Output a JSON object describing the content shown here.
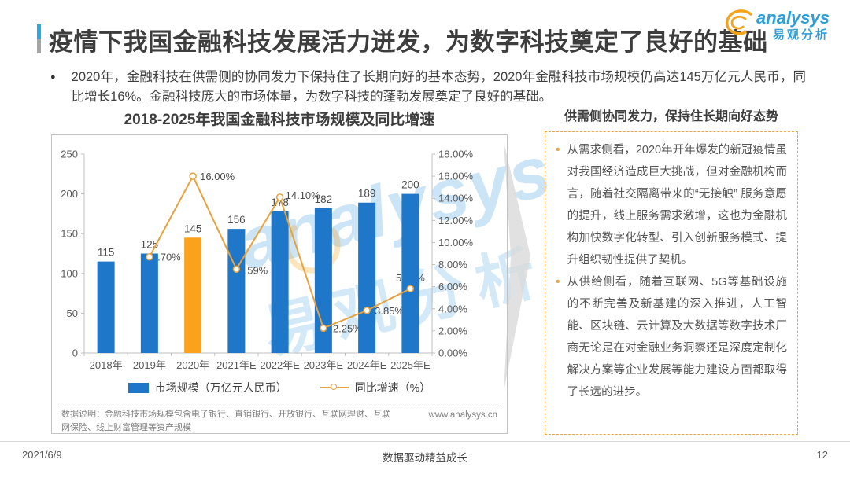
{
  "header": {
    "title": "疫情下我国金融科技发展活力迸发，为数字科技奠定了良好的基础",
    "logo_en": "analysys",
    "logo_cn": "易观分析"
  },
  "intro": {
    "marker": "●",
    "text": "2020年，金融科技在供需侧的协同发力下保持住了长期向好的基本态势，2020年金融科技市场规模仍高达145万亿元人民币，同比增长16%。金融科技庞大的市场体量，为数字科技的蓬勃发展奠定了良好的基础。"
  },
  "chart_data": {
    "type": "bar+line",
    "title": "2018-2025年我国金融科技市场规模及同比增速",
    "categories": [
      "2018年",
      "2019年",
      "2020年",
      "2021年E",
      "2022年E",
      "2023年E",
      "2024年E",
      "2025年E"
    ],
    "series": [
      {
        "name": "市场规模（万亿元人民币）",
        "type": "bar",
        "axis": "left",
        "values": [
          115,
          125,
          145,
          156,
          178,
          182,
          189,
          200
        ],
        "color": "#1e77c8",
        "highlight_index": 2,
        "highlight_color": "#faa21b"
      },
      {
        "name": "同比增速（%）",
        "type": "line",
        "axis": "right",
        "values": [
          null,
          8.7,
          16.0,
          7.59,
          14.1,
          2.25,
          3.85,
          5.82
        ],
        "color": "#e8a13c",
        "marker": "circle-white"
      }
    ],
    "left_axis": {
      "min": 0,
      "max": 250,
      "step": 50
    },
    "right_axis": {
      "min": 0,
      "max": 18,
      "step": 2,
      "unit": "%"
    },
    "legend_position": "bottom",
    "grid": false,
    "note": "数据说明：金融科技市场规模包含电子银行、直销银行、开放银行、互联网理财、互联网保险、线上财富管理等资产规模",
    "source_url": "www.analysys.cn"
  },
  "right_panel": {
    "heading": "供需侧协同发力，保持住长期向好态势",
    "bullet_marker": "•",
    "bullets": [
      "从需求侧看，2020年开年爆发的新冠疫情虽对我国经济造成巨大挑战，但对金融机构而言，随着社交隔离带来的“无接触” 服务意愿的提升，线上服务需求激增，这也为金融机构加快数字化转型、引入创新服务模式、提升组织韧性提供了契机。",
      "从供给侧看，随着互联网、5G等基础设施的不断完善及新基建的深入推进，人工智能、区块链、云计算及大数据等数字技术厂商无论是在对金融业务洞察还是深度定制化解决方案等企业发展等能力建设方面都取得了长远的进步。"
    ]
  },
  "footer": {
    "date": "2021/6/9",
    "center": "数据驱动精益成长",
    "page": "12"
  },
  "watermark": {
    "en": "analysys",
    "cn": "易观分析"
  },
  "colors": {
    "bar_blue": "#1e77c8",
    "bar_highlight_orange": "#faa21b",
    "line_orange": "#e8a13c",
    "title_accent_blue": "#29abe2",
    "panel_border_orange": "#f0a43e",
    "logo_blue": "#2f9fd6",
    "arrow_gray": "#d9d9d9"
  }
}
